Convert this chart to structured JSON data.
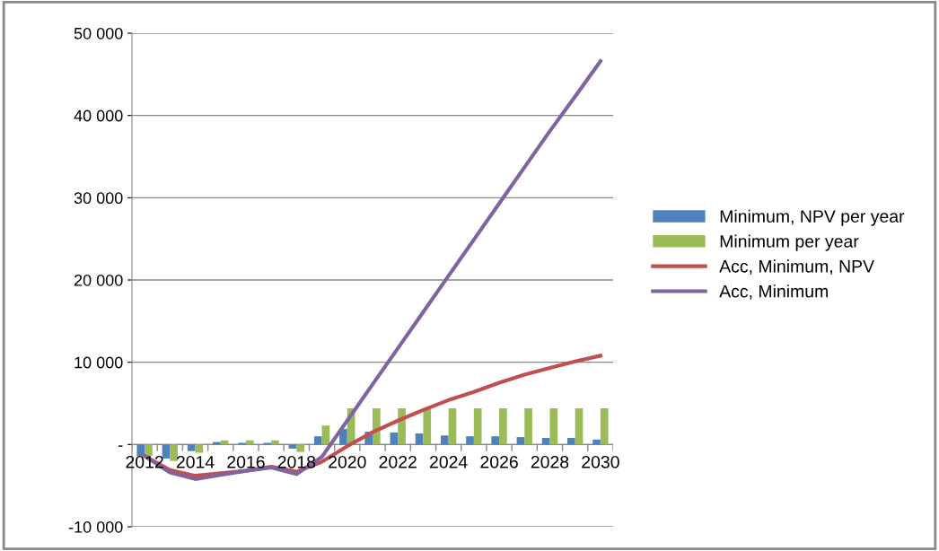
{
  "chart_data": {
    "type": "bar",
    "categories": [
      "2012",
      null,
      "2014",
      null,
      "2016",
      null,
      "2018",
      null,
      "2020",
      null,
      "2022",
      null,
      "2024",
      null,
      "2026",
      null,
      "2028",
      null,
      "2030"
    ],
    "series": [
      {
        "name": "Minimum, NPV per year",
        "color": "#4f81bd",
        "values": [
          -1400,
          -1700,
          -800,
          300,
          200,
          200,
          -500,
          1000,
          1900,
          1550,
          1450,
          1350,
          1100,
          1000,
          1000,
          900,
          800,
          800,
          600
        ]
      },
      {
        "name": "Minimum per year",
        "color": "#9bbb59",
        "values": [
          -1400,
          -2000,
          -1000,
          500,
          500,
          500,
          -900,
          2300,
          4400,
          4400,
          4400,
          4400,
          4400,
          4400,
          4400,
          4400,
          4400,
          4400,
          4400
        ]
      },
      {
        "name": "Acc, Minimum, NPV",
        "type": "line",
        "color": "#c0504d",
        "values": [
          -1400,
          -3100,
          -3800,
          -3500,
          -3200,
          -2700,
          -3300,
          -2100,
          -200,
          1500,
          2900,
          4200,
          5400,
          6400,
          7500,
          8500,
          9300,
          10100,
          10800
        ]
      },
      {
        "name": "Acc, Minimum",
        "type": "line",
        "color": "#8064a2",
        "values": [
          -1400,
          -3400,
          -4200,
          -3700,
          -3200,
          -2800,
          -3600,
          -1500,
          2900,
          7300,
          11700,
          16100,
          20500,
          24900,
          29300,
          33700,
          38100,
          42300,
          46600
        ]
      }
    ],
    "ylim": [
      -10000,
      50000
    ],
    "yticks": [
      {
        "value": -10000,
        "label": "-10 000"
      },
      {
        "value": 0,
        "label": "-"
      },
      {
        "value": 10000,
        "label": "10 000"
      },
      {
        "value": 20000,
        "label": "20 000"
      },
      {
        "value": 30000,
        "label": "30 000"
      },
      {
        "value": 40000,
        "label": "40 000"
      },
      {
        "value": 50000,
        "label": "50 000"
      }
    ],
    "grid": "y",
    "legend": "right",
    "marker": "none",
    "line_style": "solid"
  }
}
